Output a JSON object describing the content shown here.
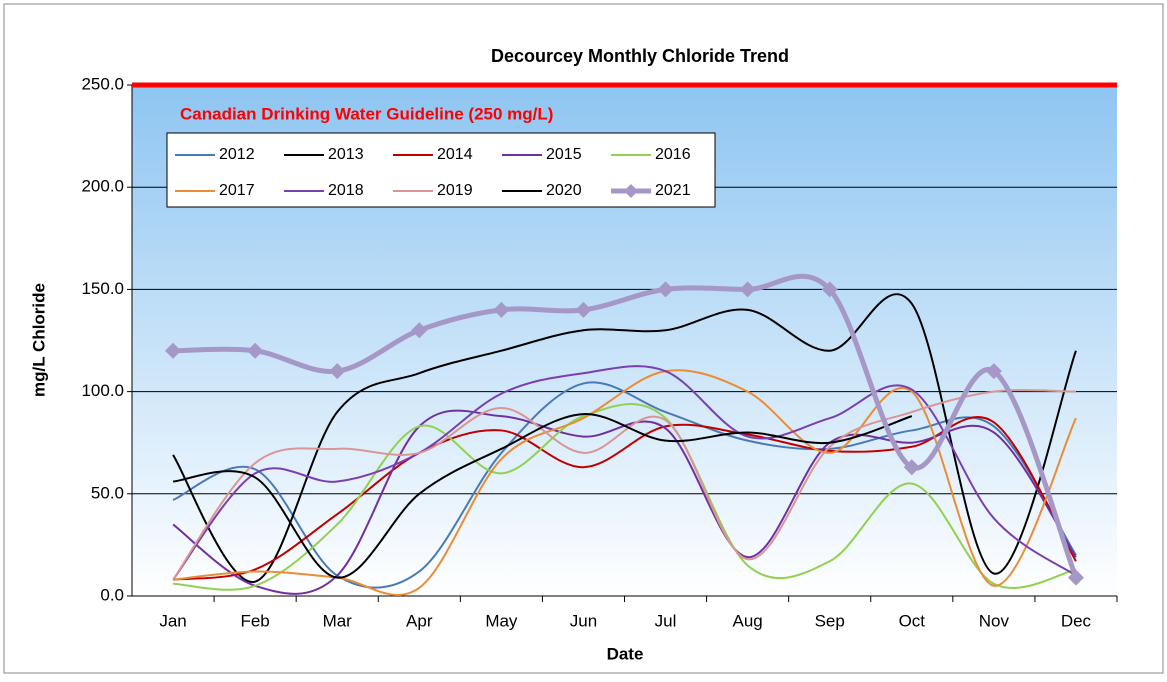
{
  "chart_data": {
    "type": "line",
    "title": "Decourcey Monthly Chloride Trend",
    "annotation": "Canadian Drinking Water Guideline (250 mg/L)",
    "guideline": 250,
    "guideline_color": "#ff0000",
    "xlabel": "Date",
    "ylabel": "mg/L Chloride",
    "categories": [
      "Jan",
      "Feb",
      "Mar",
      "Apr",
      "May",
      "Jun",
      "Jul",
      "Aug",
      "Sep",
      "Oct",
      "Nov",
      "Dec"
    ],
    "ylim": [
      0,
      250
    ],
    "yticks": [
      {
        "value": 0,
        "label": "0.0"
      },
      {
        "value": 50,
        "label": "50.0"
      },
      {
        "value": 100,
        "label": "100.0"
      },
      {
        "value": 150,
        "label": "150.0"
      },
      {
        "value": 200,
        "label": "200.0"
      },
      {
        "value": 250,
        "label": "250.0"
      }
    ],
    "grid": true,
    "series": [
      {
        "name": "2012",
        "color": "#4a7ab5",
        "values": [
          47,
          62,
          10,
          12,
          70,
          104,
          90,
          76,
          72,
          81,
          83,
          20
        ]
      },
      {
        "name": "2013",
        "color": "#000000",
        "values": [
          69,
          7,
          90,
          109,
          120,
          130,
          130,
          140,
          120,
          143,
          11,
          120
        ]
      },
      {
        "name": "2014",
        "color": "#c00000",
        "values": [
          8,
          13,
          40,
          70,
          81,
          63,
          83,
          79,
          71,
          73,
          85,
          17
        ]
      },
      {
        "name": "2015",
        "color": "#7030a0",
        "values": [
          35,
          5,
          10,
          83,
          88,
          78,
          82,
          19,
          75,
          75,
          80,
          19
        ]
      },
      {
        "name": "2016",
        "color": "#92d050",
        "values": [
          6,
          5,
          35,
          83,
          60,
          88,
          87,
          15,
          17,
          55,
          6,
          13
        ]
      },
      {
        "name": "2017",
        "color": "#e98c35",
        "values": [
          8,
          12,
          9,
          4,
          67,
          87,
          110,
          100,
          70,
          100,
          5,
          87
        ]
      },
      {
        "name": "2018",
        "color": "#7a3fb0",
        "values": [
          8,
          60,
          56,
          70,
          99,
          109,
          110,
          78,
          87,
          101,
          38,
          10
        ]
      },
      {
        "name": "2019",
        "color": "#d99694",
        "values": [
          8,
          65,
          72,
          70,
          92,
          70,
          86,
          18,
          73,
          90,
          100,
          100
        ]
      },
      {
        "name": "2020",
        "color": "#000000",
        "values": [
          56,
          58,
          9,
          50,
          72,
          89,
          76,
          80,
          75,
          88,
          null,
          null
        ]
      },
      {
        "name": "2021",
        "color": "#a597c6",
        "values": [
          120,
          120,
          110,
          130,
          140,
          140,
          150,
          150,
          150,
          63,
          110,
          9
        ],
        "markers": true
      }
    ]
  }
}
